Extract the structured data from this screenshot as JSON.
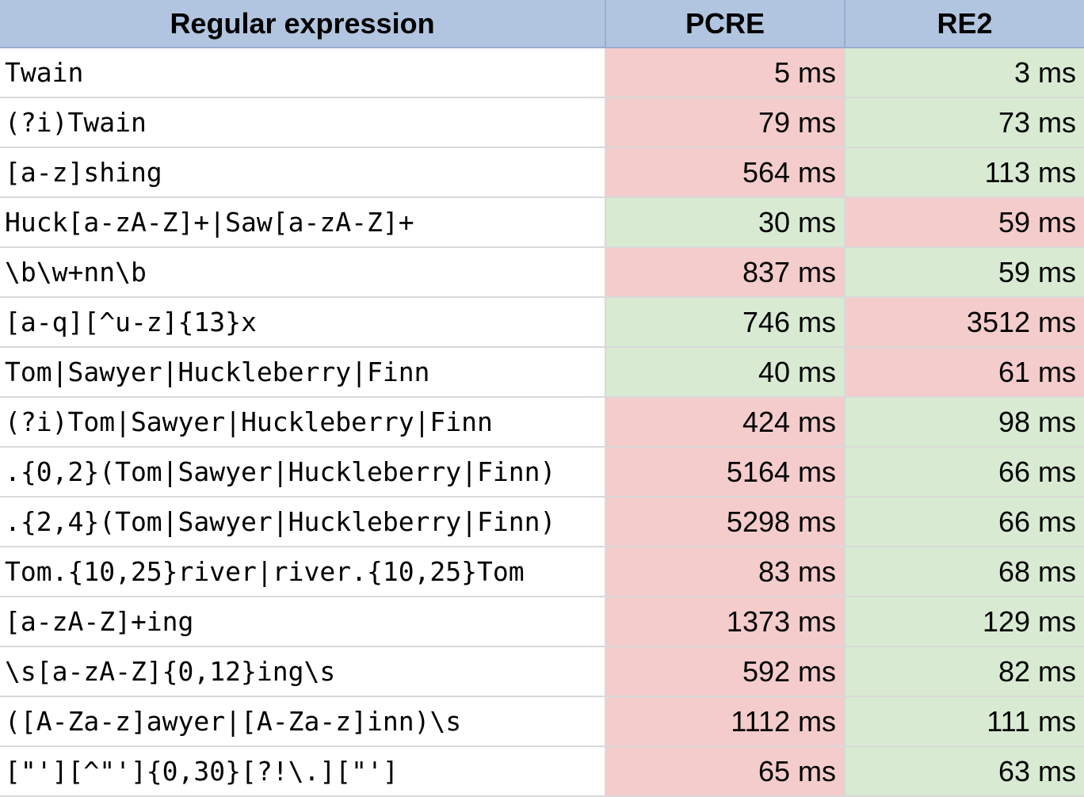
{
  "headers": {
    "regex": "Regular expression",
    "pcre": "PCRE",
    "re2": "RE2"
  },
  "colors": {
    "header_bg": "#b1c5e0",
    "slower_bg": "#f4cccc",
    "faster_bg": "#d9ead3",
    "grid": "#d9d9d9"
  },
  "rows": [
    {
      "regex": "Twain",
      "pcre": "5 ms",
      "re2": "3 ms",
      "pcre_status": "slow",
      "re2_status": "fast"
    },
    {
      "regex": "(?i)Twain",
      "pcre": "79 ms",
      "re2": "73 ms",
      "pcre_status": "slow",
      "re2_status": "fast"
    },
    {
      "regex": "[a-z]shing",
      "pcre": "564 ms",
      "re2": "113 ms",
      "pcre_status": "slow",
      "re2_status": "fast"
    },
    {
      "regex": "Huck[a-zA-Z]+|Saw[a-zA-Z]+",
      "pcre": "30 ms",
      "re2": "59 ms",
      "pcre_status": "fast",
      "re2_status": "slow"
    },
    {
      "regex": "\\b\\w+nn\\b",
      "pcre": "837 ms",
      "re2": "59 ms",
      "pcre_status": "slow",
      "re2_status": "fast"
    },
    {
      "regex": "[a-q][^u-z]{13}x",
      "pcre": "746 ms",
      "re2": "3512 ms",
      "pcre_status": "fast",
      "re2_status": "slow"
    },
    {
      "regex": "Tom|Sawyer|Huckleberry|Finn",
      "pcre": "40 ms",
      "re2": "61 ms",
      "pcre_status": "fast",
      "re2_status": "slow"
    },
    {
      "regex": "(?i)Tom|Sawyer|Huckleberry|Finn",
      "pcre": "424 ms",
      "re2": "98 ms",
      "pcre_status": "slow",
      "re2_status": "fast"
    },
    {
      "regex": ".{0,2}(Tom|Sawyer|Huckleberry|Finn)",
      "pcre": "5164 ms",
      "re2": "66 ms",
      "pcre_status": "slow",
      "re2_status": "fast"
    },
    {
      "regex": ".{2,4}(Tom|Sawyer|Huckleberry|Finn)",
      "pcre": "5298 ms",
      "re2": "66 ms",
      "pcre_status": "slow",
      "re2_status": "fast"
    },
    {
      "regex": "Tom.{10,25}river|river.{10,25}Tom",
      "pcre": "83 ms",
      "re2": "68 ms",
      "pcre_status": "slow",
      "re2_status": "fast"
    },
    {
      "regex": "[a-zA-Z]+ing",
      "pcre": "1373 ms",
      "re2": "129 ms",
      "pcre_status": "slow",
      "re2_status": "fast"
    },
    {
      "regex": "\\s[a-zA-Z]{0,12}ing\\s",
      "pcre": "592 ms",
      "re2": "82 ms",
      "pcre_status": "slow",
      "re2_status": "fast"
    },
    {
      "regex": "([A-Za-z]awyer|[A-Za-z]inn)\\s",
      "pcre": "1112 ms",
      "re2": "111 ms",
      "pcre_status": "slow",
      "re2_status": "fast"
    },
    {
      "regex": "[\"'][^\"']{0,30}[?!\\.][\"']",
      "pcre": "65 ms",
      "re2": "63 ms",
      "pcre_status": "slow",
      "re2_status": "fast"
    }
  ]
}
